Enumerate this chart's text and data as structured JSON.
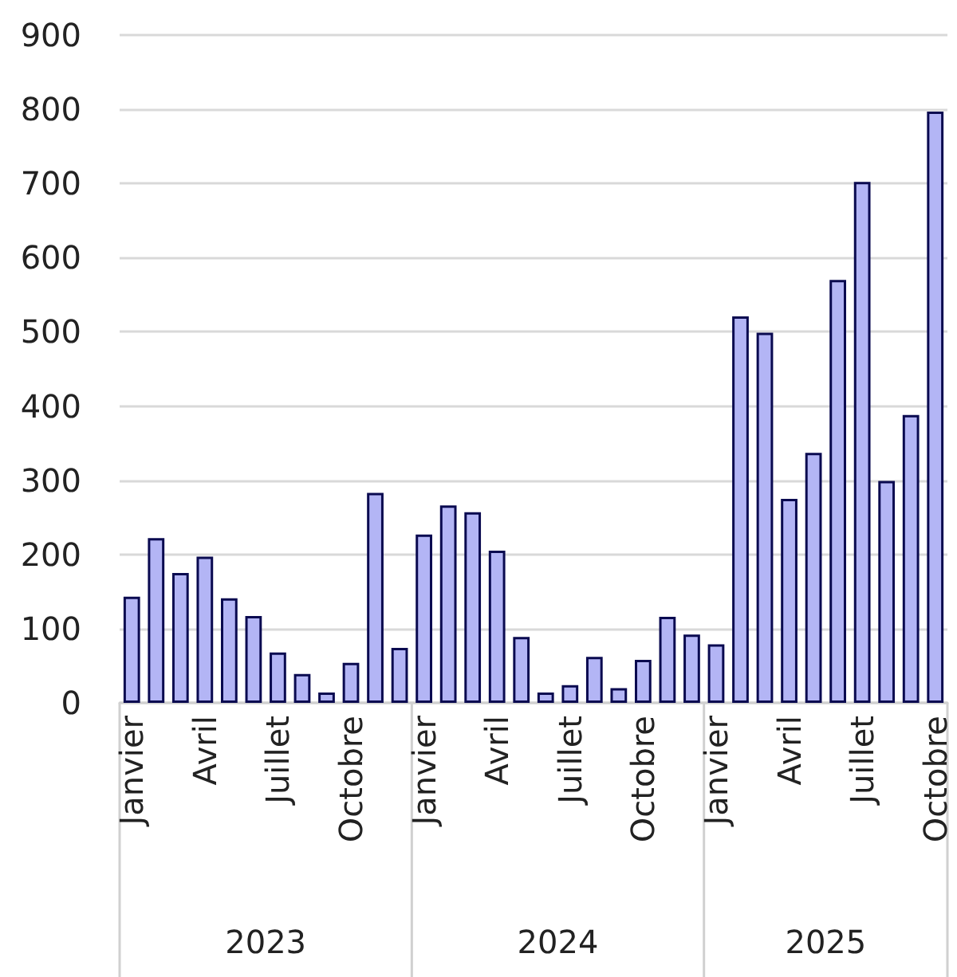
{
  "chart_data": {
    "type": "bar",
    "categories": [
      "Janvier",
      null,
      null,
      "Avril",
      null,
      null,
      "Juillet",
      null,
      null,
      "Octobre",
      null,
      null,
      "Janvier",
      null,
      null,
      "Avril",
      null,
      null,
      "Juillet",
      null,
      null,
      "Octobre",
      null,
      null,
      "Janvier",
      null,
      null,
      "Avril",
      null,
      null,
      "Juillet",
      null,
      null,
      "Octobre"
    ],
    "values": [
      143,
      222,
      175,
      197,
      141,
      117,
      68,
      39,
      14,
      54,
      283,
      74,
      227,
      266,
      257,
      205,
      89,
      14,
      24,
      62,
      20,
      58,
      116,
      92,
      79,
      521,
      499,
      275,
      337,
      570,
      702,
      299,
      388,
      797
    ],
    "color": "#b3b5f5",
    "ylim": [
      0,
      900
    ],
    "yticks": [
      0,
      100,
      200,
      300,
      400,
      500,
      600,
      700,
      800,
      900
    ],
    "grid": "y",
    "annotations": [
      "2023",
      "2024",
      "2025"
    ]
  }
}
